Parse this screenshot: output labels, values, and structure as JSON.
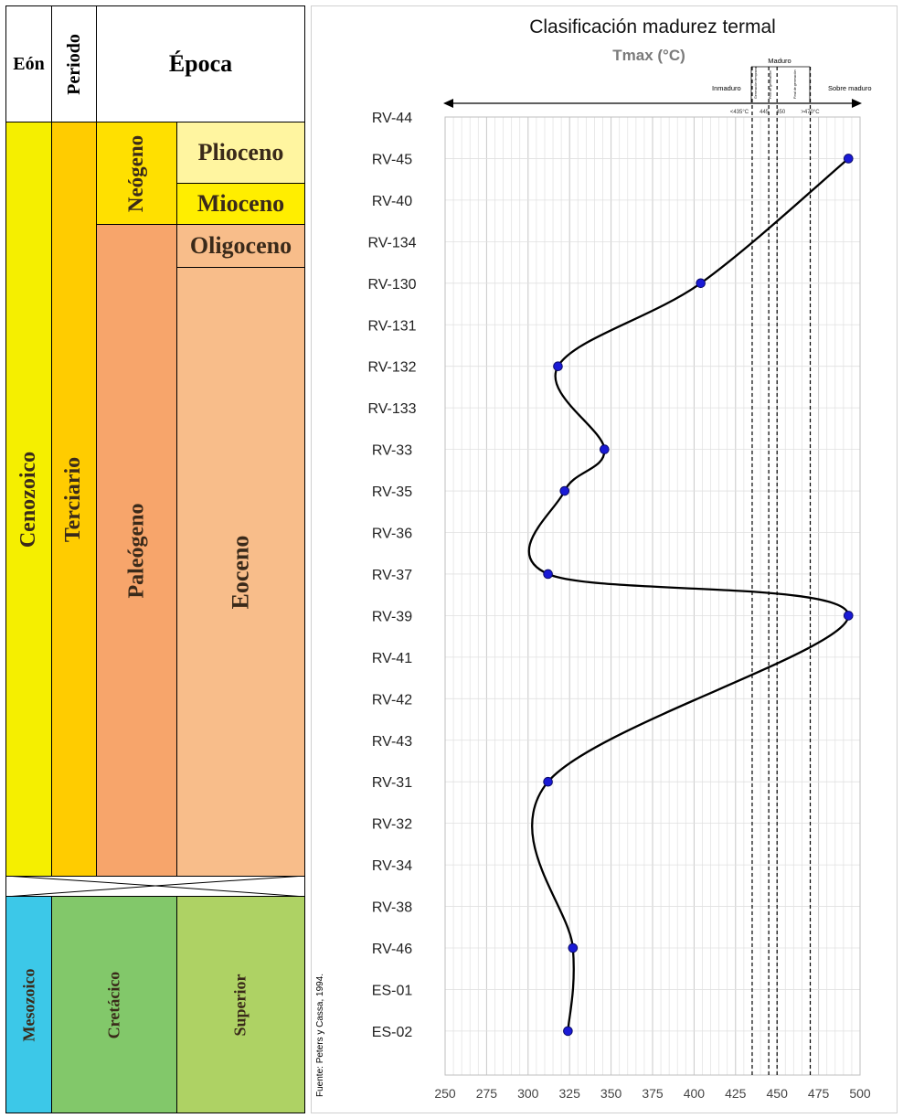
{
  "stratigraphy": {
    "headers": {
      "eon": "Eón",
      "period": "Periodo",
      "epoch": "Época"
    },
    "eons": {
      "cenozoic": "Cenozoico",
      "mesozoic": "Mesozoico"
    },
    "periods": {
      "tertiary": "Terciario",
      "cretaceous": "Cretácico"
    },
    "subperiods": {
      "neogene": "Neógeno",
      "paleogene": "Paleógeno"
    },
    "epochs": {
      "pliocene": "Plioceno",
      "miocene": "Mioceno",
      "oligocene": "Oligoceno",
      "eocene": "Eoceno",
      "upper": "Superior"
    },
    "colors": {
      "eon_cenozoic": "#f5ef00",
      "period_tertiary": "#ffcc00",
      "neogene": "#ffe000",
      "pliocene": "#fff5a0",
      "miocene": "#ffee00",
      "paleogene": "#f7a56b",
      "oligo_eocene": "#f8bd8a",
      "mesozoic": "#3cc8e8",
      "cretaceous": "#82c86a",
      "superior": "#aed264"
    }
  },
  "source_note": "Fuente: Peters y Cassa, 1994.",
  "chart_data": {
    "type": "line",
    "title": "Clasificación madurez termal",
    "xlabel": "Tmax (°C)",
    "xlim": [
      250,
      500
    ],
    "x_ticks": [
      "250",
      "275",
      "300",
      "325",
      "350",
      "375",
      "400",
      "425",
      "450",
      "475",
      "500"
    ],
    "categories": [
      "RV-44",
      "RV-45",
      "RV-40",
      "RV-134",
      "RV-130",
      "RV-131",
      "RV-132",
      "RV-133",
      "RV-33",
      "RV-35",
      "RV-36",
      "RV-37",
      "RV-39",
      "RV-41",
      "RV-42",
      "RV-43",
      "RV-31",
      "RV-32",
      "RV-34",
      "RV-38",
      "RV-46",
      "ES-01",
      "ES-02"
    ],
    "series": [
      {
        "name": "Tmax",
        "points": [
          {
            "sample": "RV-45",
            "value": 493
          },
          {
            "sample": "RV-130",
            "value": 404
          },
          {
            "sample": "RV-132",
            "value": 318
          },
          {
            "sample": "RV-33",
            "value": 346
          },
          {
            "sample": "RV-35",
            "value": 322
          },
          {
            "sample": "RV-37",
            "value": 312
          },
          {
            "sample": "RV-39",
            "value": 493
          },
          {
            "sample": "RV-31",
            "value": 312
          },
          {
            "sample": "RV-46",
            "value": 327
          },
          {
            "sample": "ES-02",
            "value": 324
          }
        ]
      }
    ],
    "thresholds": [
      435,
      445,
      450,
      470
    ],
    "threshold_labels": [
      "<435°C",
      "445",
      "450",
      ">470°C"
    ],
    "zones": {
      "immature": "Inmaduro",
      "mature": "Maduro",
      "early_generation": "Generación temprana",
      "peak_generation": "Pico de generación",
      "late_generation": "Final de generación",
      "overmature": "Sobre maduro"
    },
    "colors": {
      "line": "#000000",
      "marker": "#1a1ad6",
      "grid": "#d9d9d9"
    }
  }
}
